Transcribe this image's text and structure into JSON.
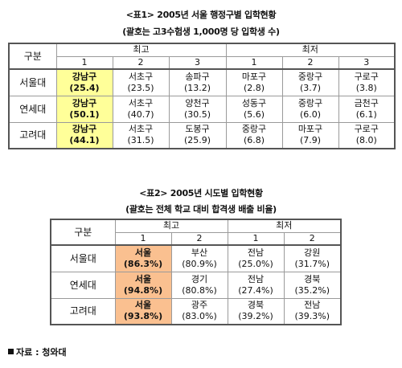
{
  "table1": {
    "title": "<표1> 2005년 서울 행정구별 입학현황",
    "subtitle": "(괄호는 고3수험생 1,000명 당 입학생 수)",
    "col_group_label": "구분",
    "high_label": "최고",
    "low_label": "최저",
    "ranks": [
      "1",
      "2",
      "3",
      "1",
      "2",
      "3"
    ],
    "rows": [
      {
        "school": "서울대",
        "cells": [
          {
            "name": "강남구",
            "value": "(25.4)"
          },
          {
            "name": "서초구",
            "value": "(23.5)"
          },
          {
            "name": "송파구",
            "value": "(13.2)"
          },
          {
            "name": "마포구",
            "value": "(2.8)"
          },
          {
            "name": "중랑구",
            "value": "(3.7)"
          },
          {
            "name": "구로구",
            "value": "(3.8)"
          }
        ]
      },
      {
        "school": "연세대",
        "cells": [
          {
            "name": "강남구",
            "value": "(50.1)"
          },
          {
            "name": "서초구",
            "value": "(40.7)"
          },
          {
            "name": "양천구",
            "value": "(30.5)"
          },
          {
            "name": "성동구",
            "value": "(5.6)"
          },
          {
            "name": "중랑구",
            "value": "(6.0)"
          },
          {
            "name": "금천구",
            "value": "(6.1)"
          }
        ]
      },
      {
        "school": "고려대",
        "cells": [
          {
            "name": "강남구",
            "value": "(44.1)"
          },
          {
            "name": "서초구",
            "value": "(31.5)"
          },
          {
            "name": "도봉구",
            "value": "(25.9)"
          },
          {
            "name": "중랑구",
            "value": "(6.8)"
          },
          {
            "name": "마포구",
            "value": "(7.9)"
          },
          {
            "name": "구로구",
            "value": "(8.0)"
          }
        ]
      }
    ]
  },
  "table2": {
    "title": "<표2> 2005년 시도별 입학현황",
    "subtitle": "(괄호는 전체 학교 대비 합격생 배출 비율)",
    "col_group_label": "구분",
    "high_label": "최고",
    "low_label": "최저",
    "ranks": [
      "1",
      "2",
      "1",
      "2"
    ],
    "rows": [
      {
        "school": "서울대",
        "cells": [
          {
            "name": "서울",
            "value": "(86.3%)"
          },
          {
            "name": "부산",
            "value": "(80.9%)"
          },
          {
            "name": "전남",
            "value": "(25.0%)"
          },
          {
            "name": "강원",
            "value": "(31.7%)"
          }
        ]
      },
      {
        "school": "연세대",
        "cells": [
          {
            "name": "서울",
            "value": "(94.8%)"
          },
          {
            "name": "경기",
            "value": "(80.8%)"
          },
          {
            "name": "전남",
            "value": "(27.4%)"
          },
          {
            "name": "경북",
            "value": "(35.2%)"
          }
        ]
      },
      {
        "school": "고려대",
        "cells": [
          {
            "name": "서울",
            "value": "(93.8%)"
          },
          {
            "name": "광주",
            "value": "(83.0%)"
          },
          {
            "name": "경북",
            "value": "(39.2%)"
          },
          {
            "name": "전남",
            "value": "(39.3%)"
          }
        ]
      }
    ]
  },
  "source": "자료 : 청와대",
  "colors": {
    "highlight_table1": "#ffff99",
    "highlight_table2": "#fac090"
  }
}
